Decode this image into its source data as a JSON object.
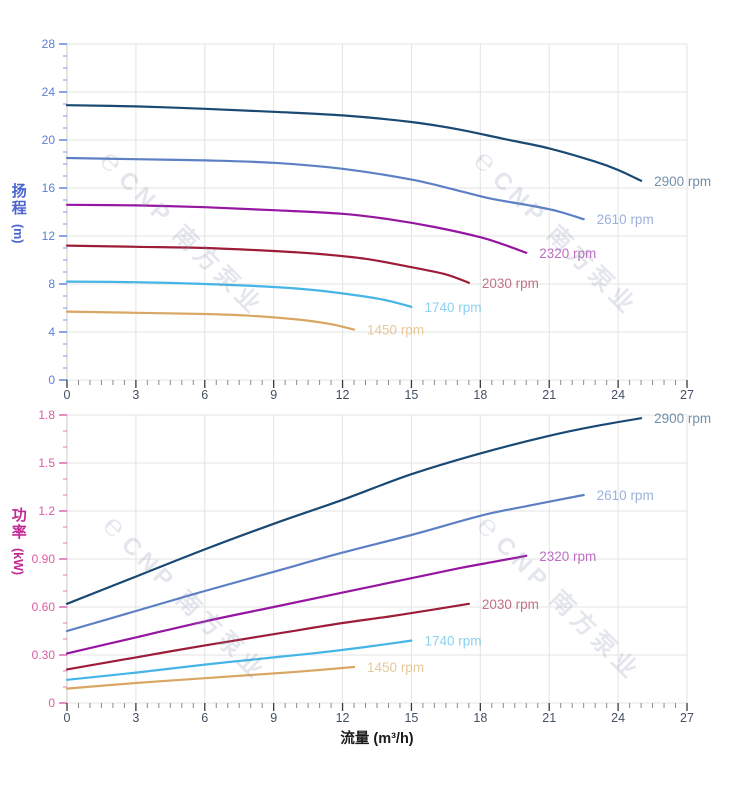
{
  "watermark": {
    "logo": "℮",
    "text": "CNP 南方泵业"
  },
  "axes": {
    "flow_title": "流量 (m³/h)"
  },
  "colors": {
    "grid": "#e3e3e3",
    "axis_line": "#c9c9c9",
    "x_tick_major": "#3a3a3a",
    "x_tick_minor": "#8a8a8a",
    "x_tick_label": "#454f66",
    "flow_title": "#1a1a1a",
    "head_axis": "#4a63cf",
    "head_tick_label": "#5b7fd8",
    "power_axis": "#c02a92",
    "power_tick_label": "#dd5aa5"
  },
  "chart_data": [
    {
      "type": "line",
      "panel": "head-vs-flow",
      "ylabel": "扬程",
      "ylabel_unit": "(m)",
      "xlabel": "",
      "xlim": [
        0,
        27
      ],
      "ylim": [
        0,
        28
      ],
      "x_tick_step": 3,
      "x_minor_step": 0.5,
      "y_tick_step": 4,
      "y_minor_step": 1,
      "x_tick_labels": [
        "0",
        "3",
        "6",
        "9",
        "12",
        "15",
        "18",
        "21",
        "24",
        "27"
      ],
      "y_tick_labels": [
        "0",
        "4",
        "8",
        "12",
        "16",
        "20",
        "24",
        "28"
      ],
      "grid": true,
      "legend_position": "curve-ends",
      "axis_color": "#4a63cf",
      "tick_label_color": "#5b7fd8",
      "series": [
        {
          "name": "2900 rpm",
          "color": "#1a4a73",
          "points": [
            [
              0,
              22.9
            ],
            [
              3,
              22.8
            ],
            [
              6,
              22.6
            ],
            [
              9,
              22.35
            ],
            [
              12,
              22.05
            ],
            [
              15,
              21.5
            ],
            [
              17,
              20.9
            ],
            [
              19,
              20.1
            ],
            [
              21,
              19.3
            ],
            [
              23,
              18.2
            ],
            [
              24,
              17.5
            ],
            [
              25,
              16.6
            ]
          ]
        },
        {
          "name": "2610 rpm",
          "color": "#5d80c4",
          "points": [
            [
              0,
              18.5
            ],
            [
              3,
              18.4
            ],
            [
              6,
              18.3
            ],
            [
              9,
              18.1
            ],
            [
              12,
              17.6
            ],
            [
              15,
              16.7
            ],
            [
              17,
              15.8
            ],
            [
              18.5,
              15.1
            ],
            [
              20,
              14.6
            ],
            [
              21.3,
              14.1
            ],
            [
              22.5,
              13.4
            ]
          ]
        },
        {
          "name": "2320 rpm",
          "color": "#9516a0",
          "points": [
            [
              0,
              14.6
            ],
            [
              3,
              14.55
            ],
            [
              6,
              14.4
            ],
            [
              9,
              14.15
            ],
            [
              12,
              13.85
            ],
            [
              14,
              13.4
            ],
            [
              16,
              12.75
            ],
            [
              18,
              11.9
            ],
            [
              19,
              11.3
            ],
            [
              20,
              10.6
            ]
          ]
        },
        {
          "name": "2030 rpm",
          "color": "#9d1d38",
          "points": [
            [
              0,
              11.2
            ],
            [
              3,
              11.1
            ],
            [
              6,
              11.0
            ],
            [
              9,
              10.75
            ],
            [
              11,
              10.5
            ],
            [
              13,
              10.1
            ],
            [
              15,
              9.4
            ],
            [
              16.5,
              8.8
            ],
            [
              17.5,
              8.1
            ]
          ]
        },
        {
          "name": "1740 rpm",
          "color": "#45b5e8",
          "points": [
            [
              0,
              8.2
            ],
            [
              3,
              8.15
            ],
            [
              6,
              8.0
            ],
            [
              9,
              7.75
            ],
            [
              11,
              7.45
            ],
            [
              13,
              6.95
            ],
            [
              14,
              6.6
            ],
            [
              15,
              6.1
            ]
          ]
        },
        {
          "name": "1450 rpm",
          "color": "#d8a763",
          "points": [
            [
              0,
              5.7
            ],
            [
              3,
              5.6
            ],
            [
              6,
              5.5
            ],
            [
              8,
              5.35
            ],
            [
              10,
              5.05
            ],
            [
              11.5,
              4.65
            ],
            [
              12.5,
              4.2
            ]
          ]
        }
      ]
    },
    {
      "type": "line",
      "panel": "power-vs-flow",
      "ylabel": "功率",
      "ylabel_unit": "(kW)",
      "xlabel": "流量 (m³/h)",
      "xlim": [
        0,
        27
      ],
      "ylim": [
        0,
        1.8
      ],
      "x_tick_step": 3,
      "x_minor_step": 0.5,
      "y_tick_step": 0.3,
      "y_minor_step": 0.1,
      "x_tick_labels": [
        "0",
        "3",
        "6",
        "9",
        "12",
        "15",
        "18",
        "21",
        "24",
        "27"
      ],
      "y_tick_labels": [
        "0",
        "0.30",
        "0.60",
        "0.90",
        "1.2",
        "1.5",
        "1.8"
      ],
      "grid": true,
      "legend_position": "curve-ends",
      "axis_color": "#c02a92",
      "tick_label_color": "#dd5aa5",
      "series": [
        {
          "name": "2900 rpm",
          "color": "#1a4a73",
          "points": [
            [
              0,
              0.62
            ],
            [
              3,
              0.79
            ],
            [
              6,
              0.96
            ],
            [
              9,
              1.12
            ],
            [
              12,
              1.27
            ],
            [
              15,
              1.43
            ],
            [
              18,
              1.56
            ],
            [
              21,
              1.67
            ],
            [
              23,
              1.73
            ],
            [
              25,
              1.78
            ]
          ]
        },
        {
          "name": "2610 rpm",
          "color": "#5d80c4",
          "points": [
            [
              0,
              0.45
            ],
            [
              3,
              0.575
            ],
            [
              6,
              0.7
            ],
            [
              9,
              0.82
            ],
            [
              12,
              0.94
            ],
            [
              15,
              1.05
            ],
            [
              18,
              1.17
            ],
            [
              20,
              1.23
            ],
            [
              22.5,
              1.3
            ]
          ]
        },
        {
          "name": "2320 rpm",
          "color": "#9516a0",
          "points": [
            [
              0,
              0.31
            ],
            [
              3,
              0.41
            ],
            [
              6,
              0.51
            ],
            [
              9,
              0.6
            ],
            [
              12,
              0.69
            ],
            [
              15,
              0.78
            ],
            [
              17,
              0.84
            ],
            [
              18.5,
              0.88
            ],
            [
              20,
              0.92
            ]
          ]
        },
        {
          "name": "2030 rpm",
          "color": "#9d1d38",
          "points": [
            [
              0,
              0.21
            ],
            [
              3,
              0.285
            ],
            [
              6,
              0.36
            ],
            [
              9,
              0.43
            ],
            [
              12,
              0.5
            ],
            [
              14,
              0.54
            ],
            [
              16,
              0.585
            ],
            [
              17.5,
              0.62
            ]
          ]
        },
        {
          "name": "1740 rpm",
          "color": "#45b5e8",
          "points": [
            [
              0,
              0.145
            ],
            [
              3,
              0.19
            ],
            [
              6,
              0.24
            ],
            [
              9,
              0.285
            ],
            [
              11,
              0.315
            ],
            [
              13,
              0.35
            ],
            [
              15,
              0.39
            ]
          ]
        },
        {
          "name": "1450 rpm",
          "color": "#d8a763",
          "points": [
            [
              0,
              0.09
            ],
            [
              3,
              0.125
            ],
            [
              6,
              0.155
            ],
            [
              8,
              0.175
            ],
            [
              10,
              0.195
            ],
            [
              12.5,
              0.225
            ]
          ]
        }
      ]
    }
  ]
}
